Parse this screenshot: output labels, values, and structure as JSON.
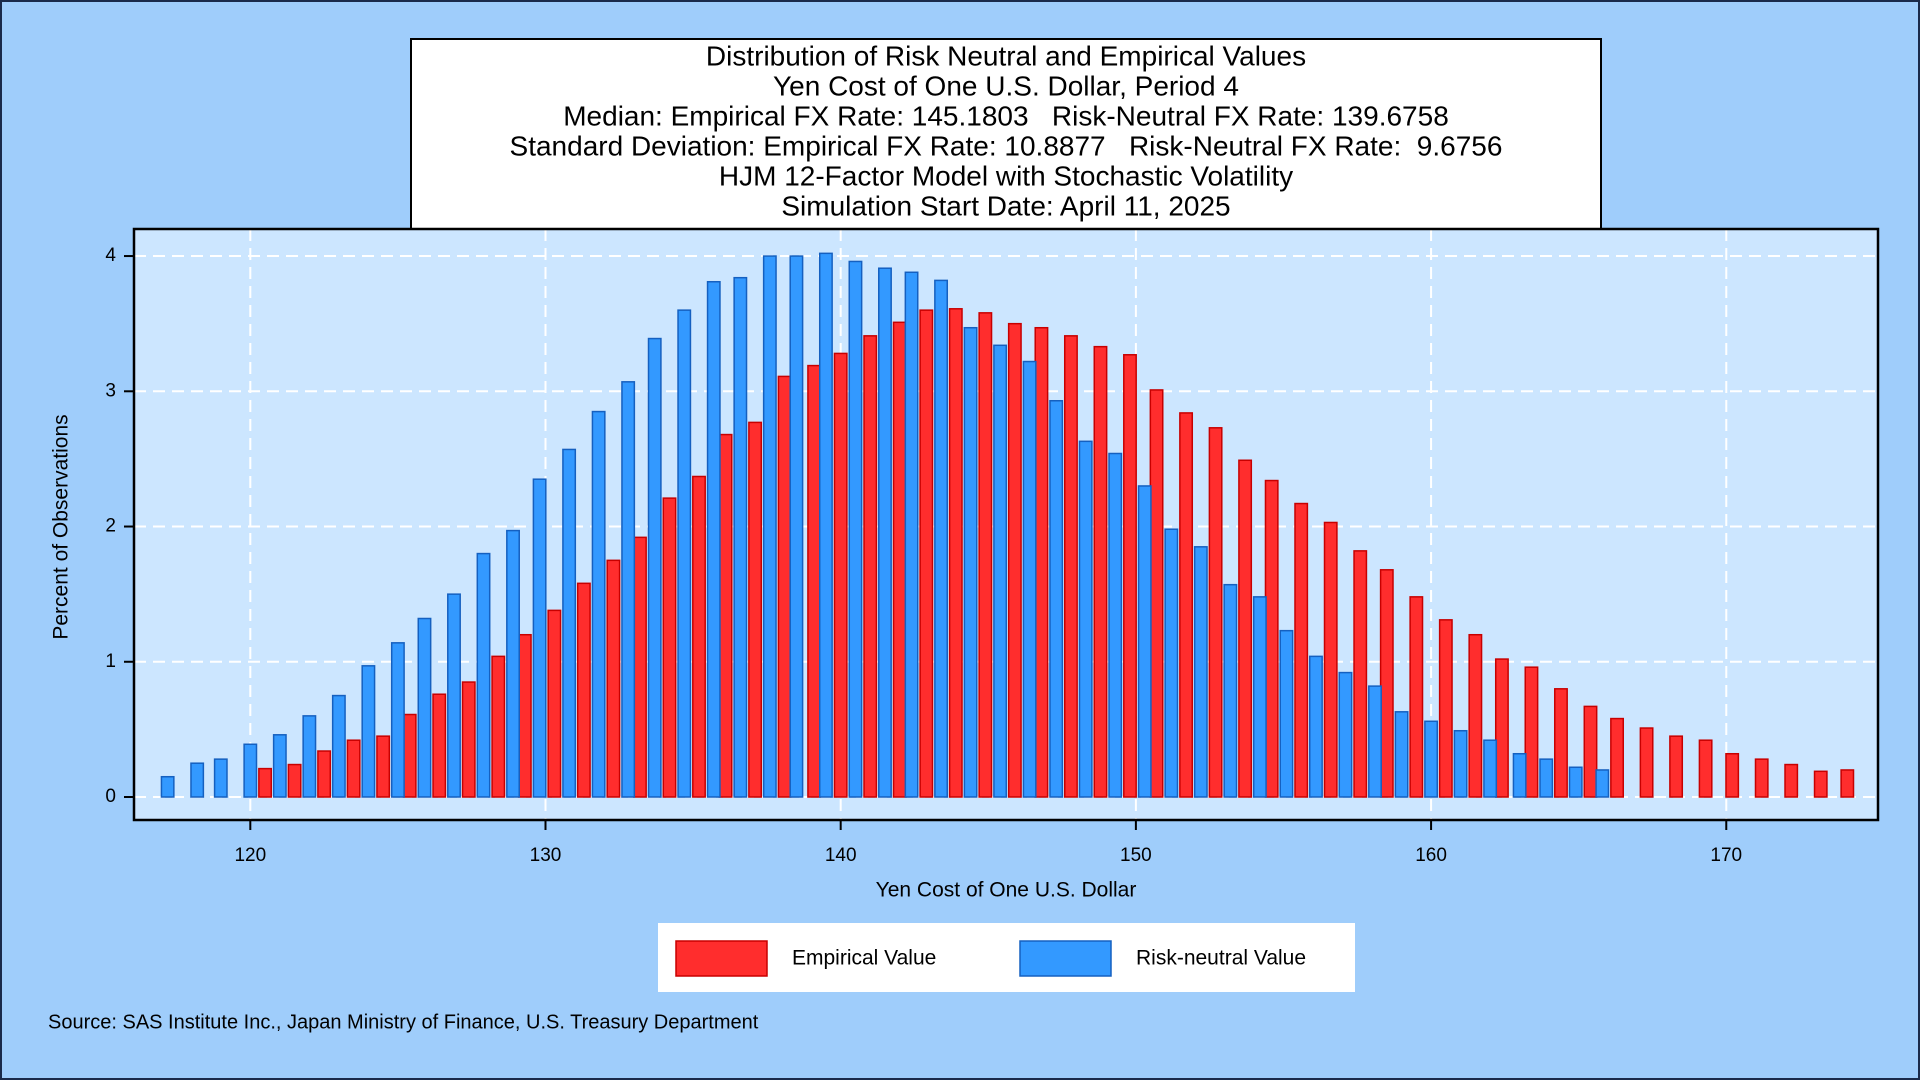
{
  "chart_data": {
    "type": "bar",
    "title": "Distribution of Risk Neutral and Empirical Values",
    "subtitle": [
      "Yen Cost of One U.S. Dollar, Period 4",
      "Median: Empirical FX Rate: 145.1803   Risk-Neutral FX Rate: 139.6758",
      "Standard Deviation: Empirical FX Rate: 10.8877   Risk-Neutral FX Rate:  9.6756",
      "HJM 12-Factor Model with Stochastic Volatility",
      "Simulation Start Date: April 11, 2025"
    ],
    "x_label": "Yen Cost of One U.S. Dollar",
    "y_label": "Percent of Observations",
    "source": "Source: SAS Institute Inc., Japan Ministry of Finance, U.S. Treasury Department",
    "xlim": [
      116.06,
      175.14
    ],
    "ylim": [
      -0.17,
      4.2
    ],
    "xticks": [
      120,
      130,
      140,
      150,
      160,
      170
    ],
    "yticks": [
      0,
      1,
      2,
      3,
      4
    ],
    "grid": true,
    "legend": "bottom",
    "series": [
      {
        "name": "Empirical Value",
        "color": "#ff2d2d",
        "x": [
          120.5,
          121.5,
          122.5,
          123.5,
          124.5,
          125.4,
          126.4,
          127.4,
          128.4,
          129.3,
          130.3,
          131.3,
          132.3,
          133.2,
          134.2,
          135.2,
          136.1,
          137.1,
          138.1,
          139.1,
          140.0,
          141.0,
          142.0,
          142.9,
          143.9,
          144.9,
          145.9,
          146.8,
          147.8,
          148.8,
          149.8,
          150.7,
          151.7,
          152.7,
          153.7,
          154.6,
          155.6,
          156.6,
          157.6,
          158.5,
          159.5,
          160.5,
          161.5,
          162.4,
          163.4,
          164.4,
          165.4,
          166.3,
          167.3,
          168.3,
          169.3,
          170.2,
          171.2,
          172.2,
          173.2,
          174.1
        ],
        "values": [
          0.21,
          0.24,
          0.34,
          0.42,
          0.45,
          0.61,
          0.76,
          0.85,
          1.04,
          1.2,
          1.38,
          1.58,
          1.75,
          1.92,
          2.21,
          2.37,
          2.68,
          2.77,
          3.11,
          3.19,
          3.28,
          3.41,
          3.51,
          3.6,
          3.61,
          3.58,
          3.5,
          3.47,
          3.41,
          3.33,
          3.27,
          3.01,
          2.84,
          2.73,
          2.49,
          2.34,
          2.17,
          2.03,
          1.82,
          1.68,
          1.48,
          1.31,
          1.2,
          1.02,
          0.96,
          0.8,
          0.67,
          0.58,
          0.51,
          0.45,
          0.42,
          0.32,
          0.28,
          0.24,
          0.19,
          0.2
        ]
      },
      {
        "name": "Risk-neutral Value",
        "color": "#3399ff",
        "x": [
          117.2,
          118.2,
          119.0,
          120.0,
          121.0,
          122.0,
          123.0,
          124.0,
          125.0,
          125.9,
          126.9,
          127.9,
          128.9,
          129.8,
          130.8,
          131.8,
          132.8,
          133.7,
          134.7,
          135.7,
          136.6,
          137.6,
          138.5,
          139.5,
          140.5,
          141.5,
          142.4,
          143.4,
          144.4,
          145.4,
          146.4,
          147.3,
          148.3,
          149.3,
          150.3,
          151.2,
          152.2,
          153.2,
          154.2,
          155.1,
          156.1,
          157.1,
          158.1,
          159.0,
          160.0,
          161.0,
          162.0,
          163.0,
          163.9,
          164.9,
          165.8
        ],
        "values": [
          0.15,
          0.25,
          0.28,
          0.39,
          0.46,
          0.6,
          0.75,
          0.97,
          1.14,
          1.32,
          1.5,
          1.8,
          1.97,
          2.35,
          2.57,
          2.85,
          3.07,
          3.39,
          3.6,
          3.81,
          3.84,
          4.0,
          4.0,
          4.02,
          3.96,
          3.91,
          3.88,
          3.82,
          3.47,
          3.34,
          3.22,
          2.93,
          2.63,
          2.54,
          2.3,
          1.98,
          1.85,
          1.57,
          1.48,
          1.23,
          1.04,
          0.92,
          0.82,
          0.63,
          0.56,
          0.49,
          0.42,
          0.32,
          0.28,
          0.22,
          0.2
        ]
      }
    ]
  }
}
